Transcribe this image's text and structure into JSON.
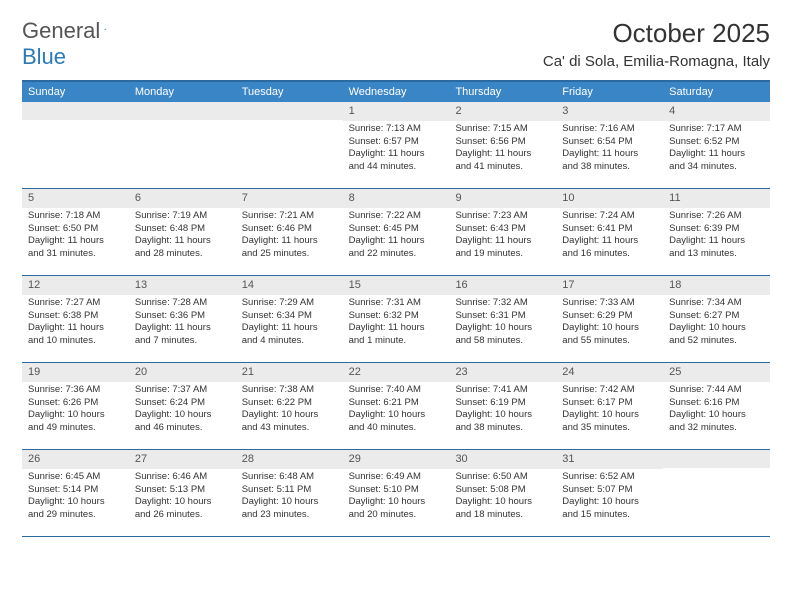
{
  "logo": {
    "text_gray": "General",
    "text_blue": "Blue"
  },
  "header": {
    "month": "October 2025",
    "location": "Ca' di Sola, Emilia-Romagna, Italy"
  },
  "colors": {
    "header_bar": "#3a85c6",
    "header_border": "#2a6aa0",
    "daynum_bg": "#ebebeb",
    "text": "#333"
  },
  "weekdays": [
    "Sunday",
    "Monday",
    "Tuesday",
    "Wednesday",
    "Thursday",
    "Friday",
    "Saturday"
  ],
  "weeks": [
    [
      {
        "n": "",
        "l1": "",
        "l2": "",
        "l3": "",
        "l4": ""
      },
      {
        "n": "",
        "l1": "",
        "l2": "",
        "l3": "",
        "l4": ""
      },
      {
        "n": "",
        "l1": "",
        "l2": "",
        "l3": "",
        "l4": ""
      },
      {
        "n": "1",
        "l1": "Sunrise: 7:13 AM",
        "l2": "Sunset: 6:57 PM",
        "l3": "Daylight: 11 hours",
        "l4": "and 44 minutes."
      },
      {
        "n": "2",
        "l1": "Sunrise: 7:15 AM",
        "l2": "Sunset: 6:56 PM",
        "l3": "Daylight: 11 hours",
        "l4": "and 41 minutes."
      },
      {
        "n": "3",
        "l1": "Sunrise: 7:16 AM",
        "l2": "Sunset: 6:54 PM",
        "l3": "Daylight: 11 hours",
        "l4": "and 38 minutes."
      },
      {
        "n": "4",
        "l1": "Sunrise: 7:17 AM",
        "l2": "Sunset: 6:52 PM",
        "l3": "Daylight: 11 hours",
        "l4": "and 34 minutes."
      }
    ],
    [
      {
        "n": "5",
        "l1": "Sunrise: 7:18 AM",
        "l2": "Sunset: 6:50 PM",
        "l3": "Daylight: 11 hours",
        "l4": "and 31 minutes."
      },
      {
        "n": "6",
        "l1": "Sunrise: 7:19 AM",
        "l2": "Sunset: 6:48 PM",
        "l3": "Daylight: 11 hours",
        "l4": "and 28 minutes."
      },
      {
        "n": "7",
        "l1": "Sunrise: 7:21 AM",
        "l2": "Sunset: 6:46 PM",
        "l3": "Daylight: 11 hours",
        "l4": "and 25 minutes."
      },
      {
        "n": "8",
        "l1": "Sunrise: 7:22 AM",
        "l2": "Sunset: 6:45 PM",
        "l3": "Daylight: 11 hours",
        "l4": "and 22 minutes."
      },
      {
        "n": "9",
        "l1": "Sunrise: 7:23 AM",
        "l2": "Sunset: 6:43 PM",
        "l3": "Daylight: 11 hours",
        "l4": "and 19 minutes."
      },
      {
        "n": "10",
        "l1": "Sunrise: 7:24 AM",
        "l2": "Sunset: 6:41 PM",
        "l3": "Daylight: 11 hours",
        "l4": "and 16 minutes."
      },
      {
        "n": "11",
        "l1": "Sunrise: 7:26 AM",
        "l2": "Sunset: 6:39 PM",
        "l3": "Daylight: 11 hours",
        "l4": "and 13 minutes."
      }
    ],
    [
      {
        "n": "12",
        "l1": "Sunrise: 7:27 AM",
        "l2": "Sunset: 6:38 PM",
        "l3": "Daylight: 11 hours",
        "l4": "and 10 minutes."
      },
      {
        "n": "13",
        "l1": "Sunrise: 7:28 AM",
        "l2": "Sunset: 6:36 PM",
        "l3": "Daylight: 11 hours",
        "l4": "and 7 minutes."
      },
      {
        "n": "14",
        "l1": "Sunrise: 7:29 AM",
        "l2": "Sunset: 6:34 PM",
        "l3": "Daylight: 11 hours",
        "l4": "and 4 minutes."
      },
      {
        "n": "15",
        "l1": "Sunrise: 7:31 AM",
        "l2": "Sunset: 6:32 PM",
        "l3": "Daylight: 11 hours",
        "l4": "and 1 minute."
      },
      {
        "n": "16",
        "l1": "Sunrise: 7:32 AM",
        "l2": "Sunset: 6:31 PM",
        "l3": "Daylight: 10 hours",
        "l4": "and 58 minutes."
      },
      {
        "n": "17",
        "l1": "Sunrise: 7:33 AM",
        "l2": "Sunset: 6:29 PM",
        "l3": "Daylight: 10 hours",
        "l4": "and 55 minutes."
      },
      {
        "n": "18",
        "l1": "Sunrise: 7:34 AM",
        "l2": "Sunset: 6:27 PM",
        "l3": "Daylight: 10 hours",
        "l4": "and 52 minutes."
      }
    ],
    [
      {
        "n": "19",
        "l1": "Sunrise: 7:36 AM",
        "l2": "Sunset: 6:26 PM",
        "l3": "Daylight: 10 hours",
        "l4": "and 49 minutes."
      },
      {
        "n": "20",
        "l1": "Sunrise: 7:37 AM",
        "l2": "Sunset: 6:24 PM",
        "l3": "Daylight: 10 hours",
        "l4": "and 46 minutes."
      },
      {
        "n": "21",
        "l1": "Sunrise: 7:38 AM",
        "l2": "Sunset: 6:22 PM",
        "l3": "Daylight: 10 hours",
        "l4": "and 43 minutes."
      },
      {
        "n": "22",
        "l1": "Sunrise: 7:40 AM",
        "l2": "Sunset: 6:21 PM",
        "l3": "Daylight: 10 hours",
        "l4": "and 40 minutes."
      },
      {
        "n": "23",
        "l1": "Sunrise: 7:41 AM",
        "l2": "Sunset: 6:19 PM",
        "l3": "Daylight: 10 hours",
        "l4": "and 38 minutes."
      },
      {
        "n": "24",
        "l1": "Sunrise: 7:42 AM",
        "l2": "Sunset: 6:17 PM",
        "l3": "Daylight: 10 hours",
        "l4": "and 35 minutes."
      },
      {
        "n": "25",
        "l1": "Sunrise: 7:44 AM",
        "l2": "Sunset: 6:16 PM",
        "l3": "Daylight: 10 hours",
        "l4": "and 32 minutes."
      }
    ],
    [
      {
        "n": "26",
        "l1": "Sunrise: 6:45 AM",
        "l2": "Sunset: 5:14 PM",
        "l3": "Daylight: 10 hours",
        "l4": "and 29 minutes."
      },
      {
        "n": "27",
        "l1": "Sunrise: 6:46 AM",
        "l2": "Sunset: 5:13 PM",
        "l3": "Daylight: 10 hours",
        "l4": "and 26 minutes."
      },
      {
        "n": "28",
        "l1": "Sunrise: 6:48 AM",
        "l2": "Sunset: 5:11 PM",
        "l3": "Daylight: 10 hours",
        "l4": "and 23 minutes."
      },
      {
        "n": "29",
        "l1": "Sunrise: 6:49 AM",
        "l2": "Sunset: 5:10 PM",
        "l3": "Daylight: 10 hours",
        "l4": "and 20 minutes."
      },
      {
        "n": "30",
        "l1": "Sunrise: 6:50 AM",
        "l2": "Sunset: 5:08 PM",
        "l3": "Daylight: 10 hours",
        "l4": "and 18 minutes."
      },
      {
        "n": "31",
        "l1": "Sunrise: 6:52 AM",
        "l2": "Sunset: 5:07 PM",
        "l3": "Daylight: 10 hours",
        "l4": "and 15 minutes."
      },
      {
        "n": "",
        "l1": "",
        "l2": "",
        "l3": "",
        "l4": ""
      }
    ]
  ]
}
